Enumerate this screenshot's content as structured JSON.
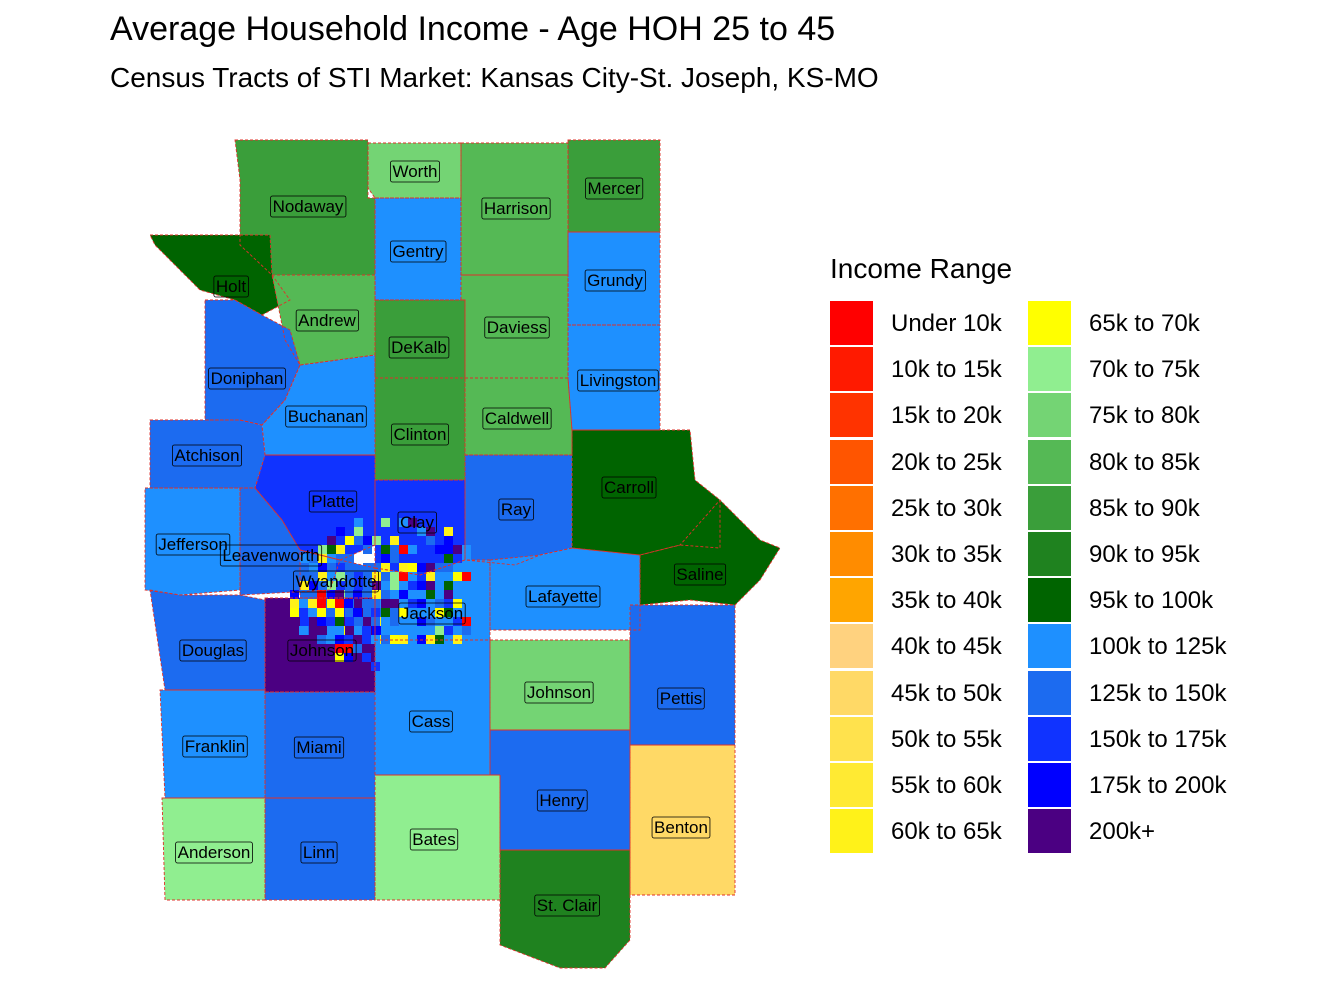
{
  "title": "Average Household Income - Age HOH 25 to 45",
  "subtitle": "Census Tracts of STI Market: Kansas City-St. Joseph, KS-MO",
  "legend": {
    "title": "Income Range",
    "items": [
      {
        "label": "Under 10k",
        "color": "#FF0000"
      },
      {
        "label": "10k to 15k",
        "color": "#FF1A00"
      },
      {
        "label": "15k to 20k",
        "color": "#FF3300"
      },
      {
        "label": "20k to 25k",
        "color": "#FF5500"
      },
      {
        "label": "25k to 30k",
        "color": "#FF7000"
      },
      {
        "label": "30k to 35k",
        "color": "#FF8C00"
      },
      {
        "label": "35k to 40k",
        "color": "#FFA500"
      },
      {
        "label": "40k to 45k",
        "color": "#FFD27F"
      },
      {
        "label": "45k to 50k",
        "color": "#FFD966"
      },
      {
        "label": "50k to 55k",
        "color": "#FFE24D"
      },
      {
        "label": "55k to 60k",
        "color": "#FFEA33"
      },
      {
        "label": "60k to 65k",
        "color": "#FFF219"
      },
      {
        "label": "65k to 70k",
        "color": "#FFFF00"
      },
      {
        "label": "70k to 75k",
        "color": "#90EE90"
      },
      {
        "label": "75k to 80k",
        "color": "#74D474"
      },
      {
        "label": "80k to 85k",
        "color": "#55B955"
      },
      {
        "label": "85k to 90k",
        "color": "#3A9E3A"
      },
      {
        "label": "90k to 95k",
        "color": "#1F821F"
      },
      {
        "label": "95k to 100k",
        "color": "#006400"
      },
      {
        "label": "100k to 125k",
        "color": "#1E90FF"
      },
      {
        "label": "125k to 150k",
        "color": "#1C6BF0"
      },
      {
        "label": "150k to 175k",
        "color": "#1033FF"
      },
      {
        "label": "175k to 200k",
        "color": "#0000FF"
      },
      {
        "label": "200k+",
        "color": "#4B0082"
      }
    ]
  },
  "counties": [
    {
      "name": "Worth",
      "bin": 14
    },
    {
      "name": "Nodaway",
      "bin": 16
    },
    {
      "name": "Harrison",
      "bin": 15
    },
    {
      "name": "Mercer",
      "bin": 16
    },
    {
      "name": "Gentry",
      "bin": 19
    },
    {
      "name": "Holt",
      "bin": 18
    },
    {
      "name": "Grundy",
      "bin": 19
    },
    {
      "name": "Andrew",
      "bin": 15
    },
    {
      "name": "DeKalb",
      "bin": 16
    },
    {
      "name": "Daviess",
      "bin": 15
    },
    {
      "name": "Doniphan",
      "bin": 20
    },
    {
      "name": "Livingston",
      "bin": 19
    },
    {
      "name": "Buchanan",
      "bin": 19
    },
    {
      "name": "Caldwell",
      "bin": 15
    },
    {
      "name": "Clinton",
      "bin": 16
    },
    {
      "name": "Atchison",
      "bin": 20
    },
    {
      "name": "Carroll",
      "bin": 18
    },
    {
      "name": "Platte",
      "bin": 21
    },
    {
      "name": "Ray",
      "bin": 20
    },
    {
      "name": "Clay",
      "bin": 21
    },
    {
      "name": "Jefferson",
      "bin": 19
    },
    {
      "name": "Leavenworth",
      "bin": 20
    },
    {
      "name": "Saline",
      "bin": 18
    },
    {
      "name": "Wyandotte",
      "bin": 20
    },
    {
      "name": "Lafayette",
      "bin": 19
    },
    {
      "name": "Jackson",
      "bin": 19
    },
    {
      "name": "Douglas",
      "bin": 20
    },
    {
      "name": "Johnson",
      "bin": 23
    },
    {
      "name": "Johnson",
      "bin": 14
    },
    {
      "name": "Pettis",
      "bin": 20
    },
    {
      "name": "Cass",
      "bin": 19
    },
    {
      "name": "Franklin",
      "bin": 19
    },
    {
      "name": "Miami",
      "bin": 20
    },
    {
      "name": "Henry",
      "bin": 20
    },
    {
      "name": "Benton",
      "bin": 8
    },
    {
      "name": "Bates",
      "bin": 13
    },
    {
      "name": "Anderson",
      "bin": 13
    },
    {
      "name": "Linn",
      "bin": 20
    },
    {
      "name": "St. Clair",
      "bin": 17
    }
  ]
}
